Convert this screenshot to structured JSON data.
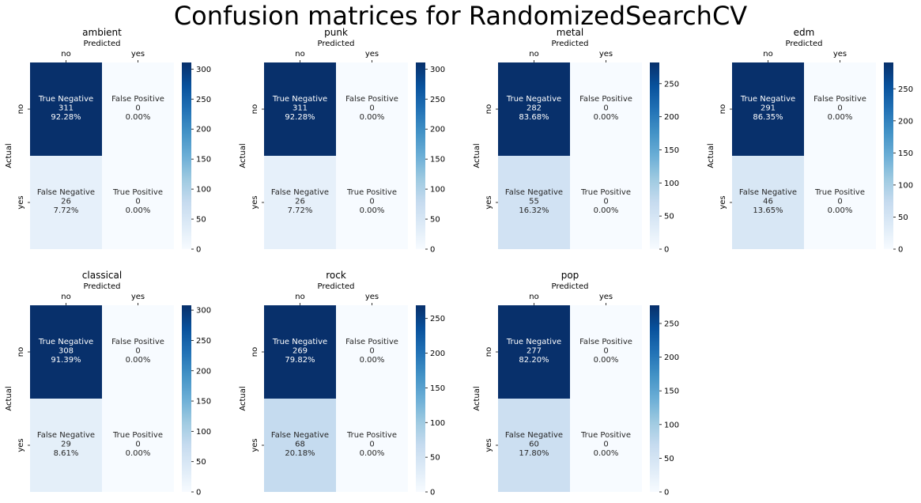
{
  "figure": {
    "title": "Confusion matrices for RandomizedSearchCV",
    "xlabel": "Predicted",
    "ylabel": "Actual",
    "class_labels": [
      "no",
      "yes"
    ],
    "cell_names": [
      [
        "True Negative",
        "False Positive"
      ],
      [
        "False Negative",
        "True Positive"
      ]
    ],
    "colormap": {
      "name": "Blues",
      "low": "#f7fbff",
      "mid": "#6baed6",
      "high": "#08306b"
    }
  },
  "chart_data": [
    {
      "type": "heatmap",
      "title": "ambient",
      "matrix": [
        [
          311,
          0
        ],
        [
          26,
          0
        ]
      ],
      "percents": [
        [
          "92.28%",
          "0.00%"
        ],
        [
          "7.72%",
          "0.00%"
        ]
      ],
      "vmin": 0,
      "vmax": 311,
      "colorbar_ticks": [
        0,
        50,
        100,
        150,
        200,
        250,
        300
      ]
    },
    {
      "type": "heatmap",
      "title": "punk",
      "matrix": [
        [
          311,
          0
        ],
        [
          26,
          0
        ]
      ],
      "percents": [
        [
          "92.28%",
          "0.00%"
        ],
        [
          "7.72%",
          "0.00%"
        ]
      ],
      "vmin": 0,
      "vmax": 311,
      "colorbar_ticks": [
        0,
        50,
        100,
        150,
        200,
        250,
        300
      ]
    },
    {
      "type": "heatmap",
      "title": "metal",
      "matrix": [
        [
          282,
          0
        ],
        [
          55,
          0
        ]
      ],
      "percents": [
        [
          "83.68%",
          "0.00%"
        ],
        [
          "16.32%",
          "0.00%"
        ]
      ],
      "vmin": 0,
      "vmax": 282,
      "colorbar_ticks": [
        0,
        50,
        100,
        150,
        200,
        250
      ]
    },
    {
      "type": "heatmap",
      "title": "edm",
      "matrix": [
        [
          291,
          0
        ],
        [
          46,
          0
        ]
      ],
      "percents": [
        [
          "86.35%",
          "0.00%"
        ],
        [
          "13.65%",
          "0.00%"
        ]
      ],
      "vmin": 0,
      "vmax": 291,
      "colorbar_ticks": [
        0,
        50,
        100,
        150,
        200,
        250
      ]
    },
    {
      "type": "heatmap",
      "title": "classical",
      "matrix": [
        [
          308,
          0
        ],
        [
          29,
          0
        ]
      ],
      "percents": [
        [
          "91.39%",
          "0.00%"
        ],
        [
          "8.61%",
          "0.00%"
        ]
      ],
      "vmin": 0,
      "vmax": 308,
      "colorbar_ticks": [
        0,
        50,
        100,
        150,
        200,
        250,
        300
      ]
    },
    {
      "type": "heatmap",
      "title": "rock",
      "matrix": [
        [
          269,
          0
        ],
        [
          68,
          0
        ]
      ],
      "percents": [
        [
          "79.82%",
          "0.00%"
        ],
        [
          "20.18%",
          "0.00%"
        ]
      ],
      "vmin": 0,
      "vmax": 269,
      "colorbar_ticks": [
        0,
        50,
        100,
        150,
        200,
        250
      ]
    },
    {
      "type": "heatmap",
      "title": "pop",
      "matrix": [
        [
          277,
          0
        ],
        [
          60,
          0
        ]
      ],
      "percents": [
        [
          "82.20%",
          "0.00%"
        ],
        [
          "17.80%",
          "0.00%"
        ]
      ],
      "vmin": 0,
      "vmax": 277,
      "colorbar_ticks": [
        0,
        50,
        100,
        150,
        200,
        250
      ]
    }
  ]
}
